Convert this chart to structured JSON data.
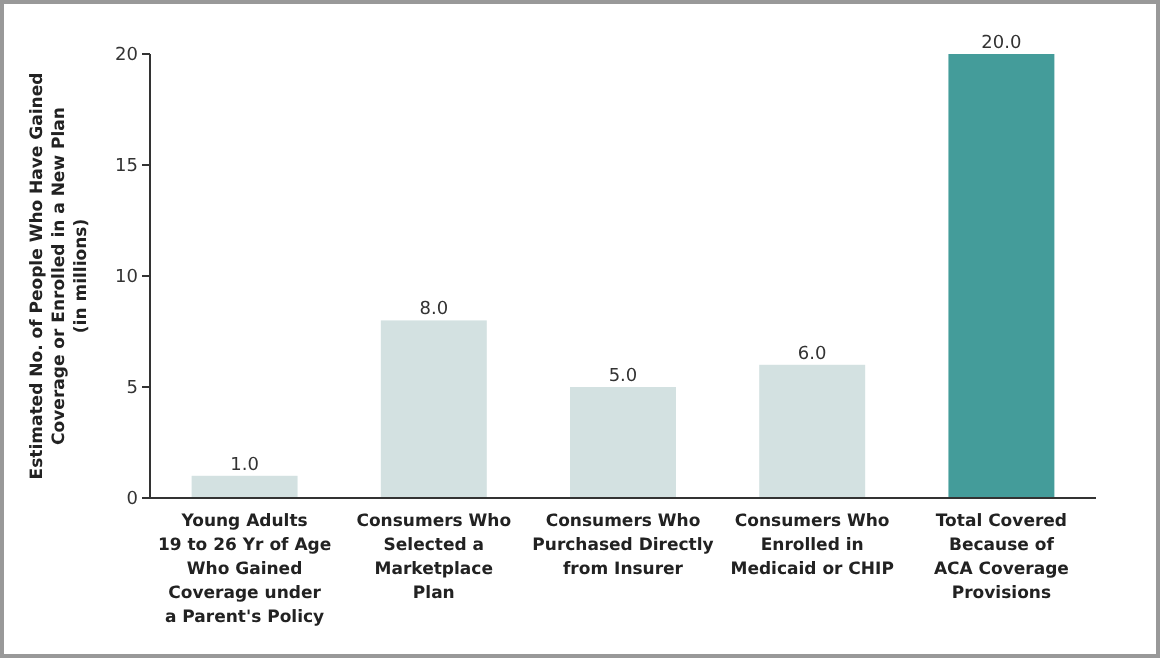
{
  "chart_data": {
    "type": "bar",
    "ylabel": "Estimated No. of People Who Have Gained\nCoverage or Enrolled in a New Plan\n(in millions)",
    "categories": [
      "Young Adults\n19 to 26 Yr of Age\nWho Gained\nCoverage under\na Parent's Policy",
      "Consumers Who\nSelected a\nMarketplace\nPlan",
      "Consumers Who\nPurchased Directly\nfrom Insurer",
      "Consumers Who\nEnrolled in\nMedicaid or CHIP",
      "Total Covered\nBecause of\nACA Coverage\nProvisions"
    ],
    "values": [
      1,
      8,
      5,
      6,
      20
    ],
    "colors": [
      "#d3e1e1",
      "#d3e1e1",
      "#d3e1e1",
      "#d3e1e1",
      "#449c9a"
    ],
    "value_labels": [
      "1.0",
      "8.0",
      "5.0",
      "6.0",
      "20.0"
    ],
    "ylim": [
      0,
      20
    ],
    "yticks": [
      0,
      5,
      10,
      15,
      20
    ],
    "grid": false
  }
}
